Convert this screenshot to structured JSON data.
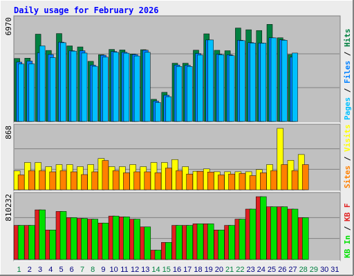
{
  "colors": {
    "background": "#ececec",
    "frame_dark": "#808080",
    "panel": "#c0c0c0",
    "title": "#0000ff",
    "hits": "#008040",
    "files": "#0080ff",
    "pages": "#00c0ff",
    "visits": "#ffff00",
    "sites": "#ff8000",
    "kb_in": "#00e000",
    "kb_f": "#e02020",
    "day_weekend": "#008040",
    "day_weekday": "#000080"
  },
  "chart_data": {
    "type": "bar",
    "title": "Daily usage for February 2026",
    "categories": [
      "1",
      "2",
      "3",
      "4",
      "5",
      "6",
      "7",
      "8",
      "9",
      "10",
      "11",
      "12",
      "13",
      "14",
      "15",
      "16",
      "17",
      "18",
      "19",
      "20",
      "21",
      "22",
      "23",
      "24",
      "25",
      "26",
      "27",
      "28",
      "29",
      "30",
      "31"
    ],
    "weekend_days": [
      "1",
      "7",
      "8",
      "14",
      "15",
      "21",
      "22",
      "28",
      "29"
    ],
    "panels": [
      {
        "name": "hits-files-pages",
        "ymax_label": "6970",
        "ymax": 6970,
        "axis_labels": [
          {
            "text": "Hits",
            "color": "#008040"
          },
          {
            "text": "Files",
            "color": "#0080ff"
          },
          {
            "text": "Pages",
            "color": "#00c0ff"
          }
        ],
        "series": [
          {
            "name": "Hits",
            "color": "#008040",
            "values": [
              4330,
              4350,
              6000,
              4880,
              6040,
              5190,
              5120,
              4130,
              4590,
              4950,
              4910,
              4630,
              4930,
              1520,
              2000,
              4000,
              4000,
              4900,
              6020,
              4890,
              4860,
              6420,
              6300,
              6250,
              6670,
              5750,
              4600,
              null,
              null,
              null,
              null
            ]
          },
          {
            "name": "Files",
            "color": "#0080ff",
            "values": [
              4080,
              4150,
              4720,
              4600,
              5450,
              4860,
              4860,
              3870,
              4550,
              4810,
              4750,
              4600,
              4900,
              1400,
              1800,
              3880,
              3860,
              4670,
              5600,
              4620,
              4580,
              5580,
              5420,
              5390,
              5750,
              5610,
              4420,
              null,
              null,
              null,
              null
            ]
          },
          {
            "name": "Pages",
            "color": "#00c0ff",
            "values": [
              3950,
              3960,
              5190,
              4390,
              5410,
              4830,
              4700,
              3790,
              4420,
              4750,
              4690,
              4500,
              4750,
              1300,
              1700,
              3780,
              3780,
              4560,
              5600,
              4580,
              4520,
              5550,
              5390,
              5380,
              5740,
              5580,
              4700,
              null,
              null,
              null,
              null
            ]
          }
        ]
      },
      {
        "name": "visits-sites",
        "ymax_label": "868",
        "ymax": 868,
        "axis_labels": [
          {
            "text": "Visits",
            "color": "#ffff00"
          },
          {
            "text": "Sites",
            "color": "#ff8000"
          }
        ],
        "series": [
          {
            "name": "Visits",
            "color": "#ffff00",
            "values": [
              267,
              385,
              385,
              327,
              356,
              356,
              328,
              356,
              442,
              327,
              327,
              356,
              327,
              385,
              385,
              427,
              327,
              261,
              295,
              255,
              255,
              255,
              255,
              285,
              356,
              868,
              415,
              498,
              null,
              null,
              null
            ]
          },
          {
            "name": "Sites",
            "color": "#ff8000",
            "values": [
              210,
              269,
              269,
              254,
              269,
              254,
              215,
              254,
              414,
              269,
              240,
              254,
              254,
              240,
              307,
              269,
              222,
              261,
              251,
              210,
              222,
              230,
              200,
              240,
              269,
              356,
              269,
              356,
              null,
              null,
              null
            ]
          }
        ]
      },
      {
        "name": "kb-in-f",
        "ymax_label": "810232",
        "ymax": 810232,
        "axis_labels": [
          {
            "text": "KB F",
            "color": "#e02020"
          },
          {
            "text": "KB In",
            "color": "#00e000"
          }
        ],
        "series": [
          {
            "name": "KB F",
            "color": "#e02020",
            "values": [
              440000,
              440000,
              640000,
              380000,
              620000,
              540000,
              530000,
              520000,
              470000,
              560000,
              550000,
              520000,
              420000,
              120000,
              220000,
              440000,
              440000,
              460000,
              460000,
              380000,
              440000,
              520000,
              650000,
              810000,
              680000,
              680000,
              650000,
              540000,
              null,
              null,
              null
            ]
          },
          {
            "name": "KB In",
            "color": "#00e000",
            "values": [
              440000,
              440000,
              640000,
              380000,
              620000,
              540000,
              530000,
              520000,
              470000,
              560000,
              550000,
              520000,
              420000,
              120000,
              220000,
              440000,
              440000,
              460000,
              460000,
              380000,
              440000,
              520000,
              650000,
              810000,
              680000,
              680000,
              650000,
              540000,
              null,
              null,
              null
            ]
          }
        ]
      }
    ]
  }
}
